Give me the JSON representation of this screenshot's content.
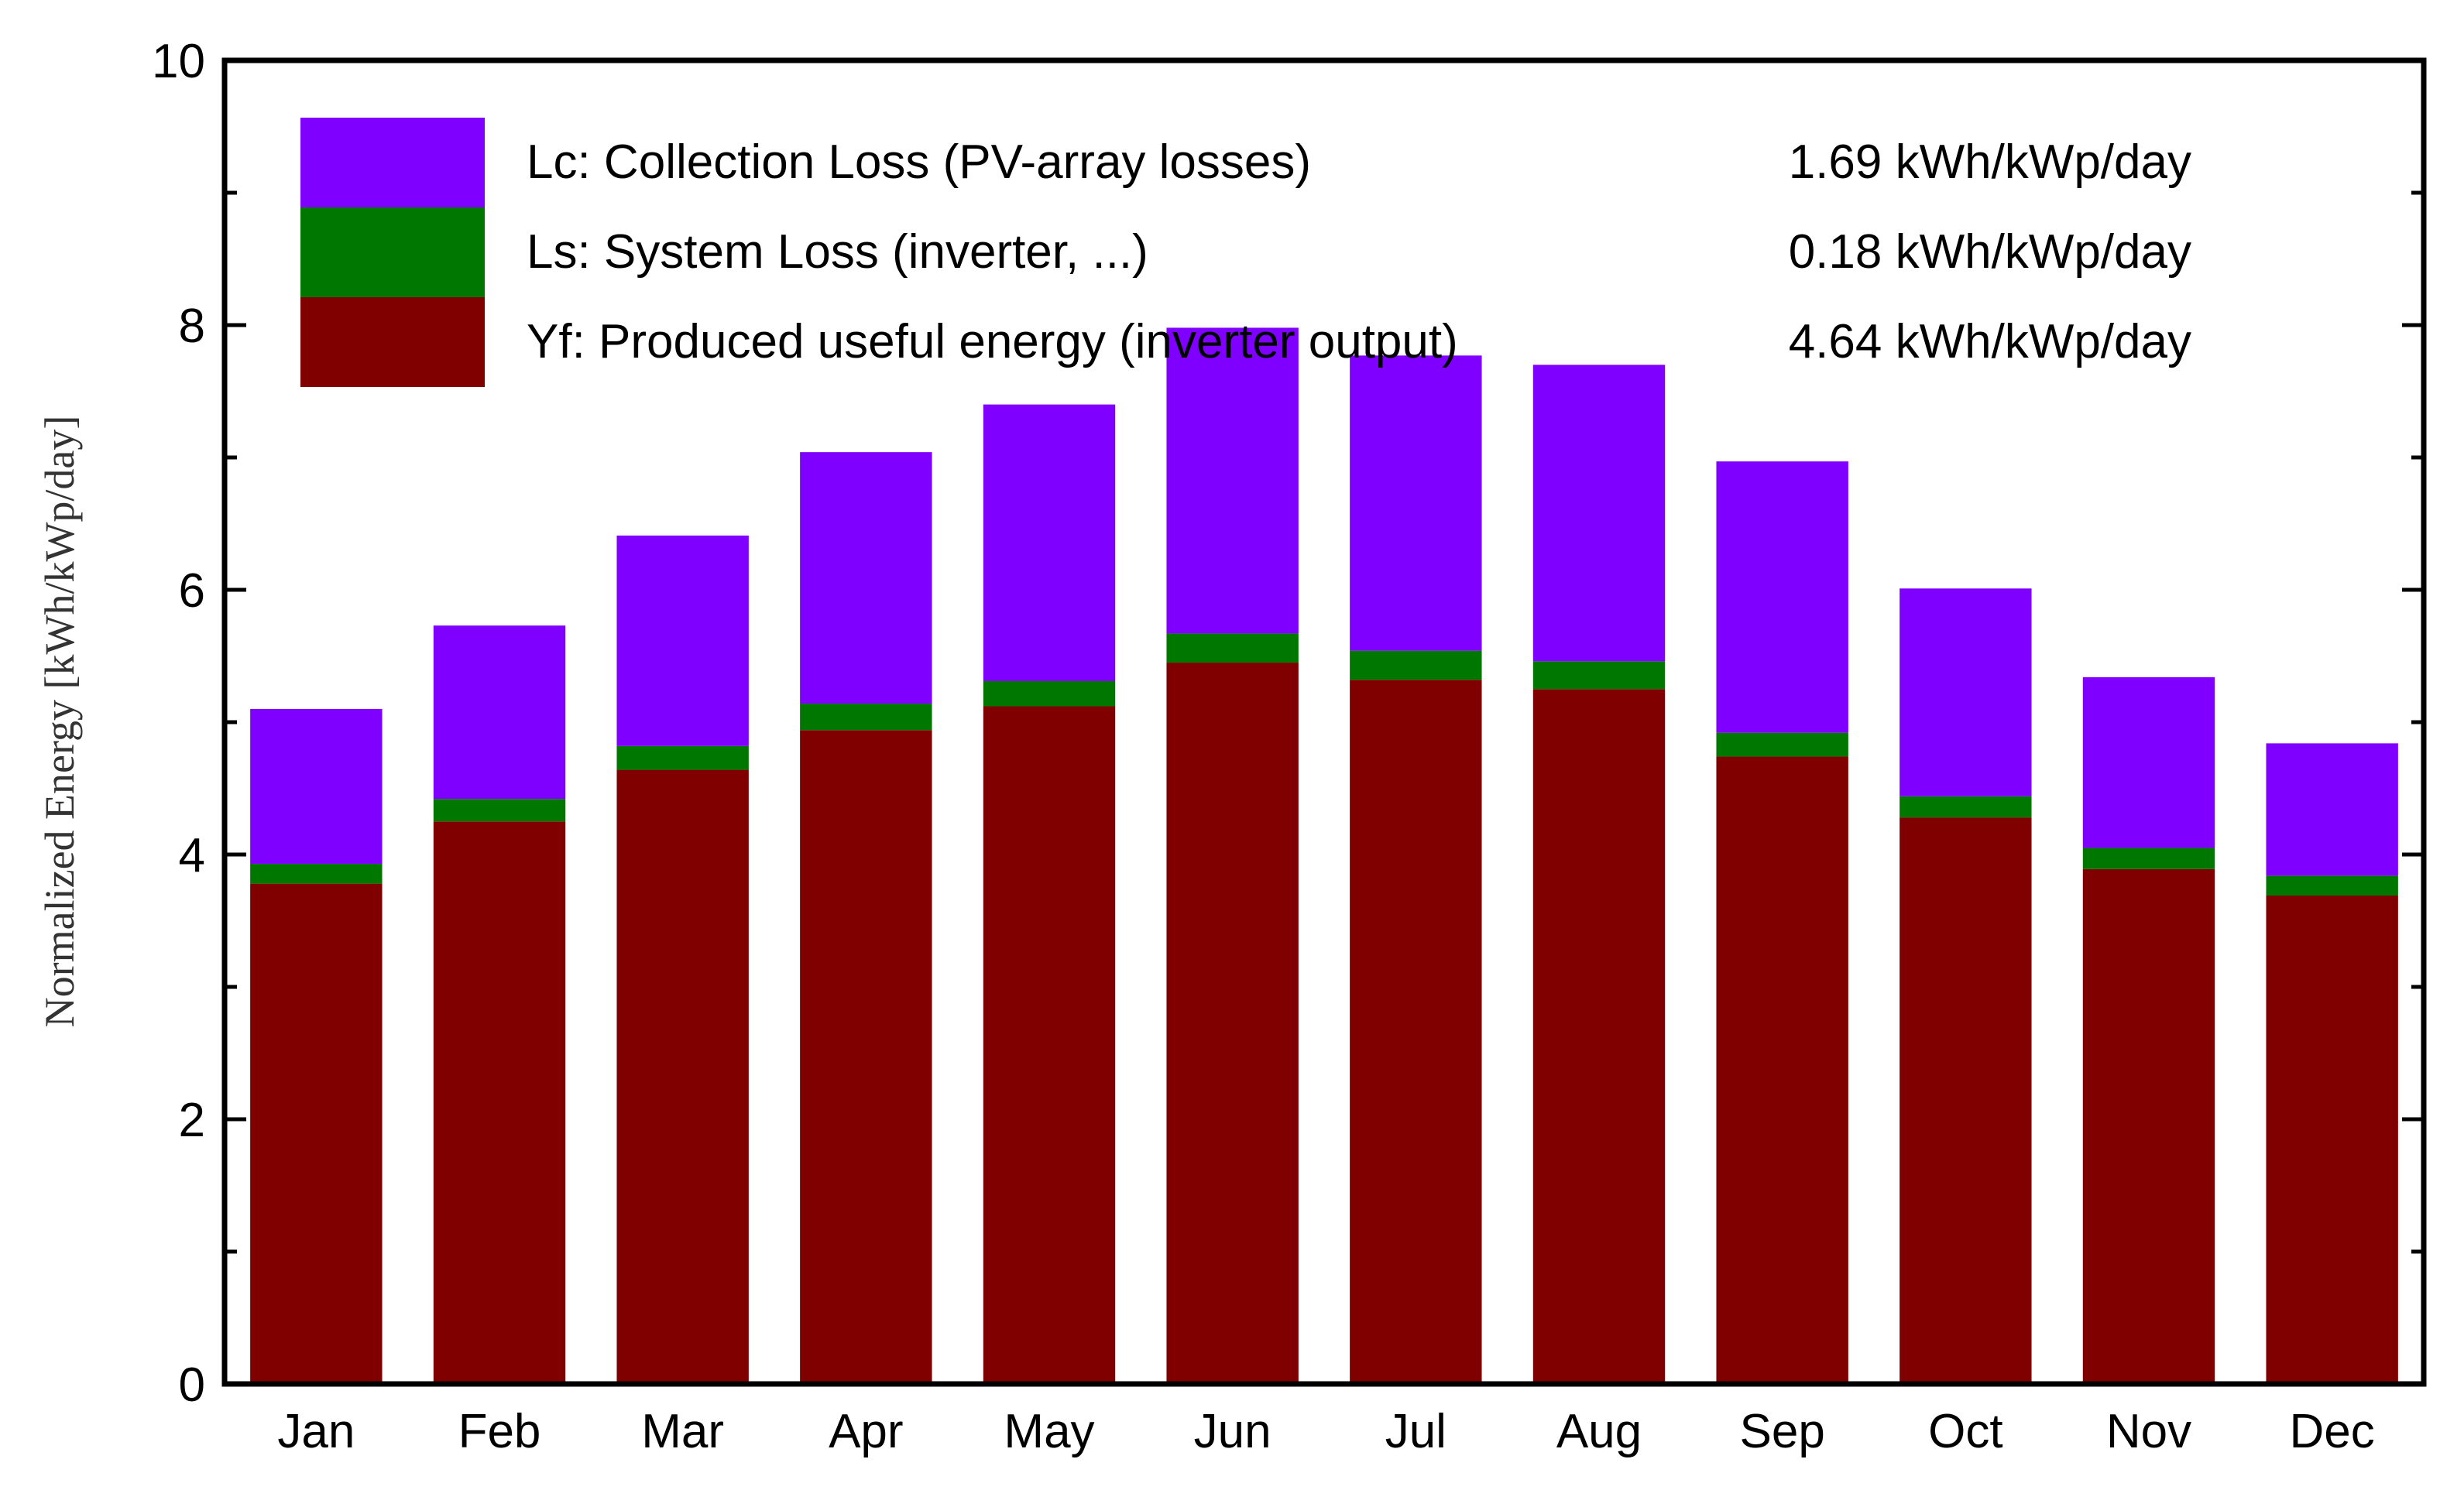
{
  "chart_data": {
    "type": "bar",
    "stacked": true,
    "title": "",
    "xlabel": "",
    "ylabel": "Normalized Energy [kWh/kWp/day]",
    "ylim": [
      0,
      10
    ],
    "yticks": [
      "0",
      "2",
      "4",
      "6",
      "8",
      "10"
    ],
    "categories": [
      "Jan",
      "Feb",
      "Mar",
      "Apr",
      "May",
      "Jun",
      "Jul",
      "Aug",
      "Sep",
      "Oct",
      "Nov",
      "Dec"
    ],
    "series": [
      {
        "name": "Yf: Produced useful energy (inverter output)",
        "value_label": "4.64 kWh/kWp/day",
        "color": "#800000",
        "values": [
          3.78,
          4.25,
          4.64,
          4.94,
          5.12,
          5.45,
          5.32,
          5.25,
          4.74,
          4.28,
          3.89,
          3.69
        ]
      },
      {
        "name": "Ls: System Loss  (inverter, ...)",
        "value_label": "0.18 kWh/kWp/day",
        "color": "#007800",
        "values": [
          0.15,
          0.17,
          0.18,
          0.2,
          0.19,
          0.22,
          0.22,
          0.21,
          0.18,
          0.16,
          0.16,
          0.15
        ]
      },
      {
        "name": "Lc: Collection Loss (PV-array losses)",
        "value_label": "1.69 kWh/kWp/day",
        "color": "#8000ff",
        "values": [
          1.17,
          1.31,
          1.59,
          1.9,
          2.09,
          2.31,
          2.23,
          2.24,
          2.05,
          1.57,
          1.29,
          1.0
        ]
      }
    ],
    "legend_position": "top-left"
  }
}
